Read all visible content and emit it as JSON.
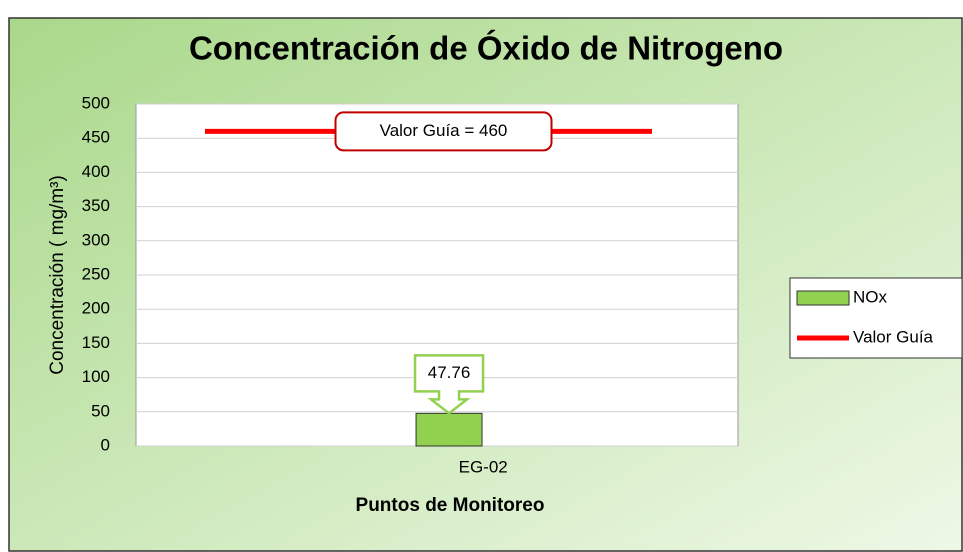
{
  "chart_data": {
    "type": "bar",
    "title": "Concentración de Óxido de Nitrogeno",
    "x_label": "Puntos de Monitoreo",
    "y_label": "Concentración ( mg/m³)",
    "categories": [
      "EG-02"
    ],
    "series": [
      {
        "name": "NOx",
        "type": "bar",
        "color": "#92d050",
        "values": [
          47.76
        ],
        "value_labels": [
          "47.76"
        ]
      },
      {
        "name": "Valor Guía",
        "type": "line",
        "color": "#ff0000",
        "values": [
          460
        ],
        "value_labels": [
          "Valor Guía = 460"
        ]
      }
    ],
    "ylim": [
      0,
      500
    ],
    "yticks": [
      0,
      50,
      100,
      150,
      200,
      250,
      300,
      350,
      400,
      450,
      500
    ],
    "grid": true,
    "legend": "right"
  }
}
